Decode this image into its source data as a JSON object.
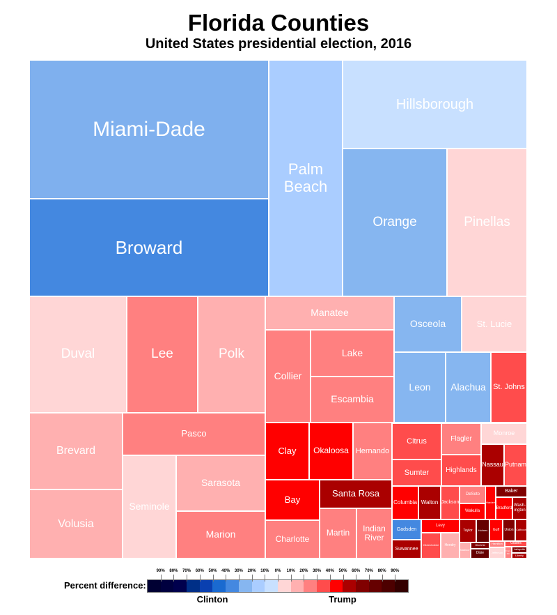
{
  "chart_data": {
    "type": "treemap",
    "title": "Florida Counties",
    "subtitle": "United States presidential election, 2016",
    "legend": {
      "label": "Percent difference:",
      "clinton_label": "Clinton",
      "trump_label": "Trump",
      "ticks": [
        "90%",
        "80%",
        "70%",
        "60%",
        "50%",
        "40%",
        "30%",
        "20%",
        "10%",
        "0%",
        "10%",
        "20%",
        "30%",
        "40%",
        "50%",
        "60%",
        "70%",
        "80%",
        "90%"
      ],
      "colors": [
        "#000033",
        "#00003f",
        "#00004d",
        "#002f87",
        "#0a40b0",
        "#1a6ad0",
        "#4488e0",
        "#86b6f0",
        "#aacdff",
        "#c8e0ff",
        "#ffd6d6",
        "#ffb0b0",
        "#ff8080",
        "#ff4c4c",
        "#ff0000",
        "#aa0000",
        "#800000",
        "#660000",
        "#4d0000",
        "#330000"
      ]
    },
    "counties": [
      {
        "name": "Miami-Dade",
        "color": "#7fb0ee"
      },
      {
        "name": "Broward",
        "color": "#4488e0"
      },
      {
        "name": "Palm\nBeach",
        "color": "#aacdff"
      },
      {
        "name": "Hillsborough",
        "color": "#c8e0ff"
      },
      {
        "name": "Orange",
        "color": "#86b6f0"
      },
      {
        "name": "Pinellas",
        "color": "#ffd6d6"
      },
      {
        "name": "Duval",
        "color": "#ffd6d6"
      },
      {
        "name": "Lee",
        "color": "#ff8080"
      },
      {
        "name": "Polk",
        "color": "#ffb0b0"
      },
      {
        "name": "Manatee",
        "color": "#ffb0b0"
      },
      {
        "name": "Collier",
        "color": "#ff8080"
      },
      {
        "name": "Lake",
        "color": "#ff8080"
      },
      {
        "name": "Escambia",
        "color": "#ff8080"
      },
      {
        "name": "Osceola",
        "color": "#86b6f0"
      },
      {
        "name": "St. Lucie",
        "color": "#ffd6d6"
      },
      {
        "name": "Leon",
        "color": "#86b6f0"
      },
      {
        "name": "Alachua",
        "color": "#86b6f0"
      },
      {
        "name": "St. Johns",
        "color": "#ff4c4c"
      },
      {
        "name": "Brevard",
        "color": "#ffb0b0"
      },
      {
        "name": "Volusia",
        "color": "#ffb0b0"
      },
      {
        "name": "Pasco",
        "color": "#ff8080"
      },
      {
        "name": "Seminole",
        "color": "#ffd6d6"
      },
      {
        "name": "Sarasota",
        "color": "#ffb0b0"
      },
      {
        "name": "Marion",
        "color": "#ff8080"
      },
      {
        "name": "Clay",
        "color": "#ff0000"
      },
      {
        "name": "Okaloosa",
        "color": "#ff0000"
      },
      {
        "name": "Hernando",
        "color": "#ff8080"
      },
      {
        "name": "Bay",
        "color": "#ff0000"
      },
      {
        "name": "Santa Rosa",
        "color": "#aa0000"
      },
      {
        "name": "Charlotte",
        "color": "#ff8080"
      },
      {
        "name": "Martin",
        "color": "#ff8080"
      },
      {
        "name": "Indian\nRiver",
        "color": "#ff8080"
      },
      {
        "name": "Citrus",
        "color": "#ff4c4c"
      },
      {
        "name": "Sumter",
        "color": "#ff4c4c"
      },
      {
        "name": "Flagler",
        "color": "#ff8080"
      },
      {
        "name": "Highlands",
        "color": "#ff4c4c"
      },
      {
        "name": "Monroe",
        "color": "#ffd6d6"
      },
      {
        "name": "Nassau",
        "color": "#aa0000"
      },
      {
        "name": "Putnam",
        "color": "#ff4c4c"
      },
      {
        "name": "Columbia",
        "color": "#ff0000"
      },
      {
        "name": "Walton",
        "color": "#aa0000"
      },
      {
        "name": "Jackson",
        "color": "#ff4c4c"
      },
      {
        "name": "DeSoto",
        "color": "#ff8080"
      },
      {
        "name": "Wakulla",
        "color": "#ff0000"
      },
      {
        "name": "Hardee",
        "color": "#ff0000"
      },
      {
        "name": "Baker",
        "color": "#800000"
      },
      {
        "name": "Bradford",
        "color": "#ff0000"
      },
      {
        "name": "Wash-\nington",
        "color": "#aa0000"
      },
      {
        "name": "Gadsden",
        "color": "#4488e0"
      },
      {
        "name": "Suwannee",
        "color": "#aa0000"
      },
      {
        "name": "Levy",
        "color": "#ff0000"
      },
      {
        "name": "Okeechobee",
        "color": "#ff4c4c"
      },
      {
        "name": "Hendry",
        "color": "#ffb0b0"
      },
      {
        "name": "Taylor",
        "color": "#aa0000"
      },
      {
        "name": "Holmes",
        "color": "#660000"
      },
      {
        "name": "Madison",
        "color": "#ffb0b0"
      },
      {
        "name": "Gilchrist",
        "color": "#800000"
      },
      {
        "name": "Dixie",
        "color": "#660000"
      },
      {
        "name": "Gulf",
        "color": "#ff0000"
      },
      {
        "name": "Union",
        "color": "#800000"
      },
      {
        "name": "Calhoun",
        "color": "#aa0000"
      },
      {
        "name": "Hamilton",
        "color": "#ff8080"
      },
      {
        "name": "Jefferson",
        "color": "#ffd6d6"
      },
      {
        "name": "Glades",
        "color": "#ff4c4c"
      },
      {
        "name": "Fran-\nklin",
        "color": "#ff8080"
      },
      {
        "name": "Lafayette",
        "color": "#800000"
      },
      {
        "name": "Liberty",
        "color": "#aa0000"
      }
    ]
  }
}
